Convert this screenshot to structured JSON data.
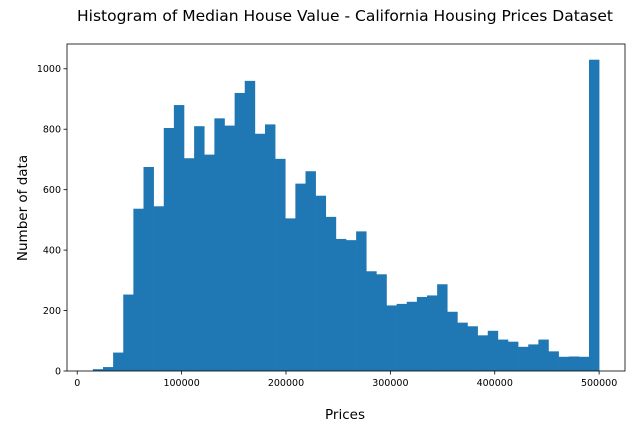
{
  "chart_data": {
    "type": "bar",
    "title": "Histogram of Median House Value - California Housing Prices Dataset",
    "xlabel": "Prices",
    "ylabel": "Number of data",
    "xlim": [
      -9800,
      524800
    ],
    "ylim": [
      0,
      1082
    ],
    "bin_start": 14999,
    "bin_end": 500001,
    "x_ticks": [
      0,
      100000,
      200000,
      300000,
      400000,
      500000
    ],
    "x_tick_labels": [
      "0",
      "100000",
      "200000",
      "300000",
      "400000",
      "500000"
    ],
    "y_ticks": [
      0,
      200,
      400,
      600,
      800,
      1000
    ],
    "y_tick_labels": [
      "0",
      "200",
      "400",
      "600",
      "800",
      "1000"
    ],
    "bar_color": "#1f77b4",
    "grid": false,
    "values": [
      6,
      13,
      61,
      253,
      537,
      675,
      545,
      804,
      880,
      704,
      810,
      716,
      836,
      812,
      920,
      960,
      785,
      816,
      702,
      505,
      620,
      661,
      580,
      510,
      437,
      433,
      462,
      330,
      320,
      217,
      222,
      229,
      245,
      250,
      287,
      196,
      160,
      148,
      118,
      133,
      104,
      97,
      80,
      88,
      104,
      65,
      47,
      48,
      47,
      1030
    ]
  }
}
